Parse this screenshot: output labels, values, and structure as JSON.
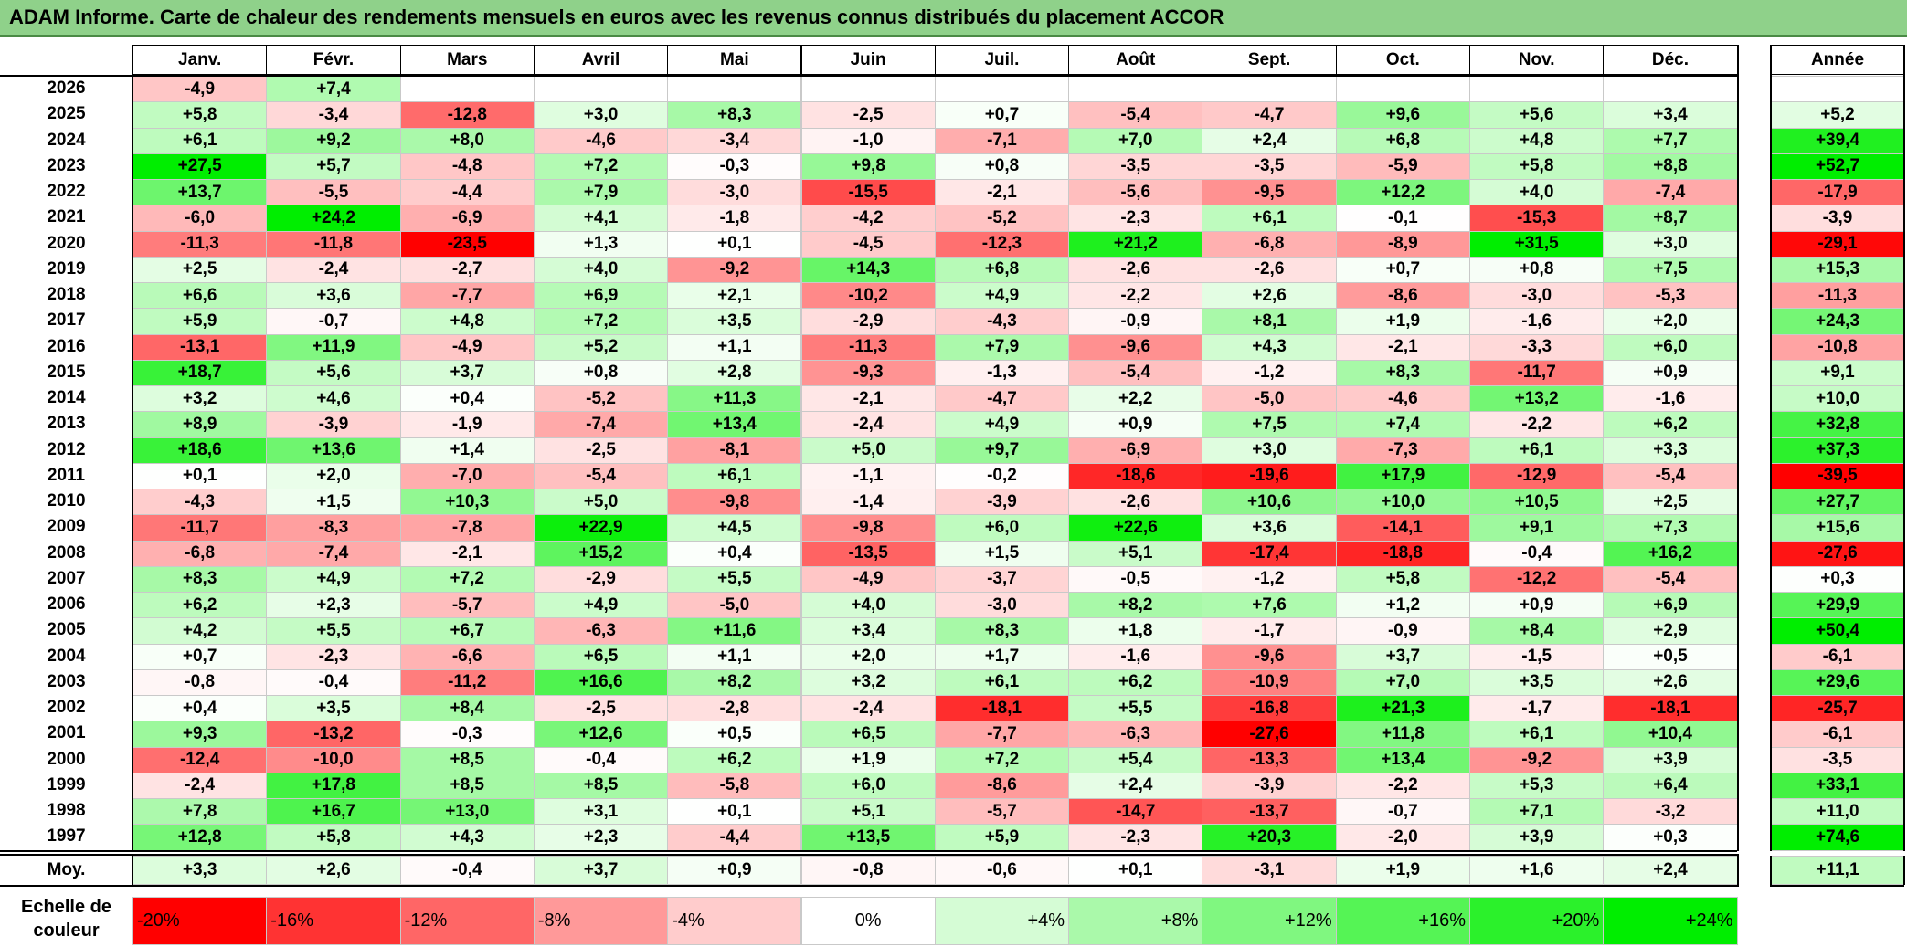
{
  "title": "ADAM Informe. Carte de chaleur des rendements mensuels en euros avec les revenus connus distribués du placement ACCOR",
  "chart_data": {
    "type": "heatmap",
    "title": "ADAM Informe. Carte de chaleur des rendements mensuels en euros avec les revenus connus distribués du placement ACCOR",
    "columns": [
      "Janv.",
      "Févr.",
      "Mars",
      "Avril",
      "Mai",
      "Juin",
      "Juil.",
      "Août",
      "Sept.",
      "Oct.",
      "Nov.",
      "Déc."
    ],
    "annual_header": "Année",
    "rows": [
      {
        "year": "2026",
        "values": [
          "-4,9",
          "+7,4",
          "",
          "",
          "",
          "",
          "",
          "",
          "",
          "",
          "",
          ""
        ],
        "annual": ""
      },
      {
        "year": "2025",
        "values": [
          "+5,8",
          "-3,4",
          "-12,8",
          "+3,0",
          "+8,3",
          "-2,5",
          "+0,7",
          "-5,4",
          "-4,7",
          "+9,6",
          "+5,6",
          "+3,4"
        ],
        "annual": "+5,2"
      },
      {
        "year": "2024",
        "values": [
          "+6,1",
          "+9,2",
          "+8,0",
          "-4,6",
          "-3,4",
          "-1,0",
          "-7,1",
          "+7,0",
          "+2,4",
          "+6,8",
          "+4,8",
          "+7,7"
        ],
        "annual": "+39,4"
      },
      {
        "year": "2023",
        "values": [
          "+27,5",
          "+5,7",
          "-4,8",
          "+7,2",
          "-0,3",
          "+9,8",
          "+0,8",
          "-3,5",
          "-3,5",
          "-5,9",
          "+5,8",
          "+8,8"
        ],
        "annual": "+52,7"
      },
      {
        "year": "2022",
        "values": [
          "+13,7",
          "-5,5",
          "-4,4",
          "+7,9",
          "-3,0",
          "-15,5",
          "-2,1",
          "-5,6",
          "-9,5",
          "+12,2",
          "+4,0",
          "-7,4"
        ],
        "annual": "-17,9"
      },
      {
        "year": "2021",
        "values": [
          "-6,0",
          "+24,2",
          "-6,9",
          "+4,1",
          "-1,8",
          "-4,2",
          "-5,2",
          "-2,3",
          "+6,1",
          "-0,1",
          "-15,3",
          "+8,7"
        ],
        "annual": "-3,9"
      },
      {
        "year": "2020",
        "values": [
          "-11,3",
          "-11,8",
          "-23,5",
          "+1,3",
          "+0,1",
          "-4,5",
          "-12,3",
          "+21,2",
          "-6,8",
          "-8,9",
          "+31,5",
          "+3,0"
        ],
        "annual": "-29,1"
      },
      {
        "year": "2019",
        "values": [
          "+2,5",
          "-2,4",
          "-2,7",
          "+4,0",
          "-9,2",
          "+14,3",
          "+6,8",
          "-2,6",
          "-2,6",
          "+0,7",
          "+0,8",
          "+7,5"
        ],
        "annual": "+15,3"
      },
      {
        "year": "2018",
        "values": [
          "+6,6",
          "+3,6",
          "-7,7",
          "+6,9",
          "+2,1",
          "-10,2",
          "+4,9",
          "-2,2",
          "+2,6",
          "-8,6",
          "-3,0",
          "-5,3"
        ],
        "annual": "-11,3"
      },
      {
        "year": "2017",
        "values": [
          "+5,9",
          "-0,7",
          "+4,8",
          "+7,2",
          "+3,5",
          "-2,9",
          "-4,3",
          "-0,9",
          "+8,1",
          "+1,9",
          "-1,6",
          "+2,0"
        ],
        "annual": "+24,3"
      },
      {
        "year": "2016",
        "values": [
          "-13,1",
          "+11,9",
          "-4,9",
          "+5,2",
          "+1,1",
          "-11,3",
          "+7,9",
          "-9,6",
          "+4,3",
          "-2,1",
          "-3,3",
          "+6,0"
        ],
        "annual": "-10,8"
      },
      {
        "year": "2015",
        "values": [
          "+18,7",
          "+5,6",
          "+3,7",
          "+0,8",
          "+2,8",
          "-9,3",
          "-1,3",
          "-5,4",
          "-1,2",
          "+8,3",
          "-11,7",
          "+0,9"
        ],
        "annual": "+9,1"
      },
      {
        "year": "2014",
        "values": [
          "+3,2",
          "+4,6",
          "+0,4",
          "-5,2",
          "+11,3",
          "-2,1",
          "-4,7",
          "+2,2",
          "-5,0",
          "-4,6",
          "+13,2",
          "-1,6"
        ],
        "annual": "+10,0"
      },
      {
        "year": "2013",
        "values": [
          "+8,9",
          "-3,9",
          "-1,9",
          "-7,4",
          "+13,4",
          "-2,4",
          "+4,9",
          "+0,9",
          "+7,5",
          "+7,4",
          "-2,2",
          "+6,2"
        ],
        "annual": "+32,8"
      },
      {
        "year": "2012",
        "values": [
          "+18,6",
          "+13,6",
          "+1,4",
          "-2,5",
          "-8,1",
          "+5,0",
          "+9,7",
          "-6,9",
          "+3,0",
          "-7,3",
          "+6,1",
          "+3,3"
        ],
        "annual": "+37,3"
      },
      {
        "year": "2011",
        "values": [
          "+0,1",
          "+2,0",
          "-7,0",
          "-5,4",
          "+6,1",
          "-1,1",
          "-0,2",
          "-18,6",
          "-19,6",
          "+17,9",
          "-12,9",
          "-5,4"
        ],
        "annual": "-39,5"
      },
      {
        "year": "2010",
        "values": [
          "-4,3",
          "+1,5",
          "+10,3",
          "+5,0",
          "-9,8",
          "-1,4",
          "-3,9",
          "-2,6",
          "+10,6",
          "+10,0",
          "+10,5",
          "+2,5"
        ],
        "annual": "+27,7"
      },
      {
        "year": "2009",
        "values": [
          "-11,7",
          "-8,3",
          "-7,8",
          "+22,9",
          "+4,5",
          "-9,8",
          "+6,0",
          "+22,6",
          "+3,6",
          "-14,1",
          "+9,1",
          "+7,3"
        ],
        "annual": "+15,6"
      },
      {
        "year": "2008",
        "values": [
          "-6,8",
          "-7,4",
          "-2,1",
          "+15,2",
          "+0,4",
          "-13,5",
          "+1,5",
          "+5,1",
          "-17,4",
          "-18,8",
          "-0,4",
          "+16,2"
        ],
        "annual": "-27,6"
      },
      {
        "year": "2007",
        "values": [
          "+8,3",
          "+4,9",
          "+7,2",
          "-2,9",
          "+5,5",
          "-4,9",
          "-3,7",
          "-0,5",
          "-1,2",
          "+5,8",
          "-12,2",
          "-5,4"
        ],
        "annual": "+0,3"
      },
      {
        "year": "2006",
        "values": [
          "+6,2",
          "+2,3",
          "-5,7",
          "+4,9",
          "-5,0",
          "+4,0",
          "-3,0",
          "+8,2",
          "+7,6",
          "+1,2",
          "+0,9",
          "+6,9"
        ],
        "annual": "+29,9"
      },
      {
        "year": "2005",
        "values": [
          "+4,2",
          "+5,5",
          "+6,7",
          "-6,3",
          "+11,6",
          "+3,4",
          "+8,3",
          "+1,8",
          "-1,7",
          "-0,9",
          "+8,4",
          "+2,9"
        ],
        "annual": "+50,4"
      },
      {
        "year": "2004",
        "values": [
          "+0,7",
          "-2,3",
          "-6,6",
          "+6,5",
          "+1,1",
          "+2,0",
          "+1,7",
          "-1,6",
          "-9,6",
          "+3,7",
          "-1,5",
          "+0,5"
        ],
        "annual": "-6,1"
      },
      {
        "year": "2003",
        "values": [
          "-0,8",
          "-0,4",
          "-11,2",
          "+16,6",
          "+8,2",
          "+3,2",
          "+6,1",
          "+6,2",
          "-10,9",
          "+7,0",
          "+3,5",
          "+2,6"
        ],
        "annual": "+29,6"
      },
      {
        "year": "2002",
        "values": [
          "+0,4",
          "+3,5",
          "+8,4",
          "-2,5",
          "-2,8",
          "-2,4",
          "-18,1",
          "+5,5",
          "-16,8",
          "+21,3",
          "-1,7",
          "-18,1"
        ],
        "annual": "-25,7"
      },
      {
        "year": "2001",
        "values": [
          "+9,3",
          "-13,2",
          "-0,3",
          "+12,6",
          "+0,5",
          "+6,5",
          "-7,7",
          "-6,3",
          "-27,6",
          "+11,8",
          "+6,1",
          "+10,4"
        ],
        "annual": "-6,1"
      },
      {
        "year": "2000",
        "values": [
          "-12,4",
          "-10,0",
          "+8,5",
          "-0,4",
          "+6,2",
          "+1,9",
          "+7,2",
          "+5,4",
          "-13,3",
          "+13,4",
          "-9,2",
          "+3,9"
        ],
        "annual": "-3,5"
      },
      {
        "year": "1999",
        "values": [
          "-2,4",
          "+17,8",
          "+8,5",
          "+8,5",
          "-5,8",
          "+6,0",
          "-8,6",
          "+2,4",
          "-3,9",
          "-2,2",
          "+5,3",
          "+6,4"
        ],
        "annual": "+33,1"
      },
      {
        "year": "1998",
        "values": [
          "+7,8",
          "+16,7",
          "+13,0",
          "+3,1",
          "+0,1",
          "+5,1",
          "-5,7",
          "-14,7",
          "-13,7",
          "-0,7",
          "+7,1",
          "-3,2"
        ],
        "annual": "+11,0"
      },
      {
        "year": "1997",
        "values": [
          "+12,8",
          "+5,8",
          "+4,3",
          "+2,3",
          "-4,4",
          "+13,5",
          "+5,9",
          "-2,3",
          "+20,3",
          "-2,0",
          "+3,9",
          "+0,3"
        ],
        "annual": "+74,6"
      }
    ],
    "average": {
      "label": "Moy.",
      "values": [
        "+3,3",
        "+2,6",
        "-0,4",
        "+3,7",
        "+0,9",
        "-0,8",
        "-0,6",
        "+0,1",
        "-3,1",
        "+1,9",
        "+1,6",
        "+2,4"
      ],
      "annual": "+11,1"
    },
    "color_scale": {
      "label_line1": "Echelle de",
      "label_line2": "couleur",
      "stops": [
        "-20%",
        "-16%",
        "-12%",
        "-8%",
        "-4%",
        "0%",
        "+4%",
        "+8%",
        "+12%",
        "+16%",
        "+20%",
        "+24%"
      ],
      "stop_values": [
        -20,
        -16,
        -12,
        -8,
        -4,
        0,
        4,
        8,
        12,
        16,
        20,
        24
      ],
      "negative_color": "#ff0000",
      "neutral_color": "#ffffff",
      "positive_color": "#00ee00"
    }
  }
}
